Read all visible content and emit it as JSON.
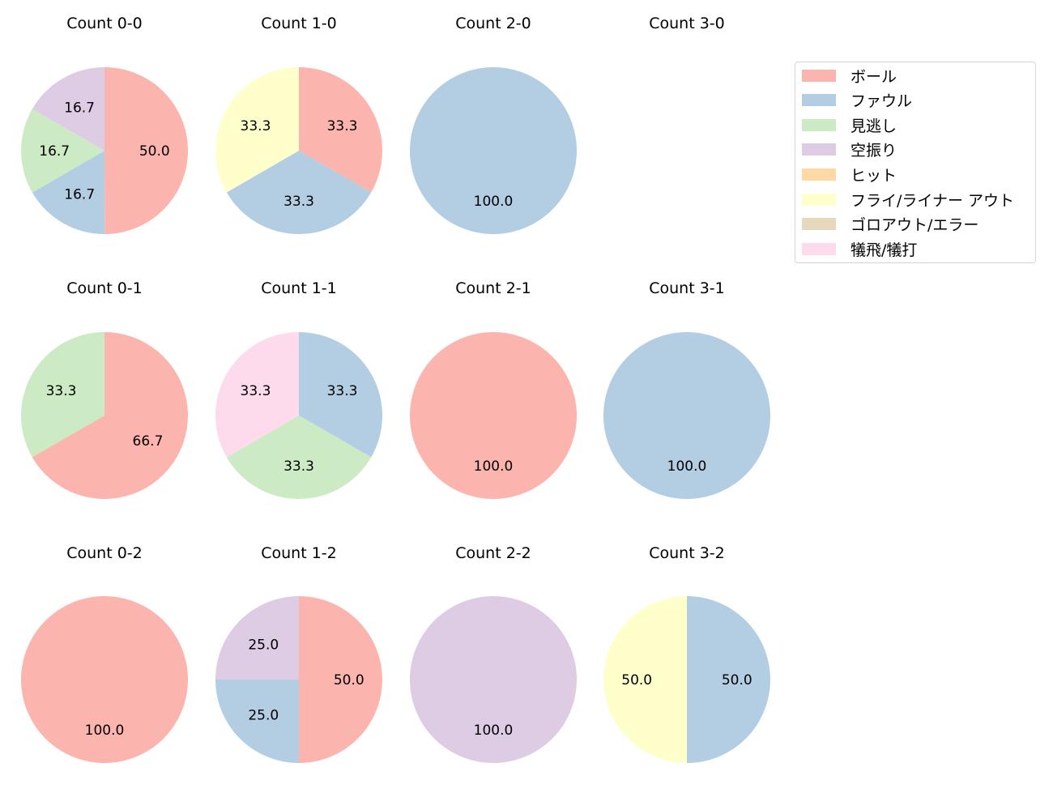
{
  "legend": {
    "items": [
      {
        "label": "ボール",
        "color": "#fbb4ae"
      },
      {
        "label": "ファウル",
        "color": "#b3cde3"
      },
      {
        "label": "見逃し",
        "color": "#ccebc5"
      },
      {
        "label": "空振り",
        "color": "#decbe4"
      },
      {
        "label": "ヒット",
        "color": "#fed9a6"
      },
      {
        "label": "フライ/ライナー アウト",
        "color": "#ffffcc"
      },
      {
        "label": "ゴロアウト/エラー",
        "color": "#e5d8bd"
      },
      {
        "label": "犠飛/犠打",
        "color": "#fddaec"
      }
    ]
  },
  "chart_data": {
    "type": "pie",
    "start_angle_deg": 90,
    "direction": "clockwise",
    "label_format": "%.1f",
    "categories": [
      "ボール",
      "ファウル",
      "見逃し",
      "空振り",
      "ヒット",
      "フライ/ライナー アウト",
      "ゴロアウト/エラー",
      "犠飛/犠打"
    ],
    "colors": [
      "#fbb4ae",
      "#b3cde3",
      "#ccebc5",
      "#decbe4",
      "#fed9a6",
      "#ffffcc",
      "#e5d8bd",
      "#fddaec"
    ],
    "legend_position": "upper right",
    "charts": [
      {
        "title": "Count 0-0",
        "row": 0,
        "col": 0,
        "slices": [
          {
            "category": "ボール",
            "value": 50.0
          },
          {
            "category": "ファウル",
            "value": 16.7
          },
          {
            "category": "見逃し",
            "value": 16.7
          },
          {
            "category": "空振り",
            "value": 16.7
          }
        ]
      },
      {
        "title": "Count 1-0",
        "row": 0,
        "col": 1,
        "slices": [
          {
            "category": "ボール",
            "value": 33.3
          },
          {
            "category": "ファウル",
            "value": 33.3
          },
          {
            "category": "フライ/ライナー アウト",
            "value": 33.3
          }
        ]
      },
      {
        "title": "Count 2-0",
        "row": 0,
        "col": 2,
        "slices": [
          {
            "category": "ファウル",
            "value": 100.0
          }
        ]
      },
      {
        "title": "Count 3-0",
        "row": 0,
        "col": 3,
        "slices": []
      },
      {
        "title": "Count 0-1",
        "row": 1,
        "col": 0,
        "slices": [
          {
            "category": "ボール",
            "value": 66.7
          },
          {
            "category": "見逃し",
            "value": 33.3
          }
        ]
      },
      {
        "title": "Count 1-1",
        "row": 1,
        "col": 1,
        "slices": [
          {
            "category": "ファウル",
            "value": 33.3
          },
          {
            "category": "見逃し",
            "value": 33.3
          },
          {
            "category": "犠飛/犠打",
            "value": 33.3
          }
        ]
      },
      {
        "title": "Count 2-1",
        "row": 1,
        "col": 2,
        "slices": [
          {
            "category": "ボール",
            "value": 100.0
          }
        ]
      },
      {
        "title": "Count 3-1",
        "row": 1,
        "col": 3,
        "slices": [
          {
            "category": "ファウル",
            "value": 100.0
          }
        ]
      },
      {
        "title": "Count 0-2",
        "row": 2,
        "col": 0,
        "slices": [
          {
            "category": "ボール",
            "value": 100.0
          }
        ]
      },
      {
        "title": "Count 1-2",
        "row": 2,
        "col": 1,
        "slices": [
          {
            "category": "ボール",
            "value": 50.0
          },
          {
            "category": "ファウル",
            "value": 25.0
          },
          {
            "category": "空振り",
            "value": 25.0
          }
        ]
      },
      {
        "title": "Count 2-2",
        "row": 2,
        "col": 2,
        "slices": [
          {
            "category": "空振り",
            "value": 100.0
          }
        ]
      },
      {
        "title": "Count 3-2",
        "row": 2,
        "col": 3,
        "slices": [
          {
            "category": "ファウル",
            "value": 50.0
          },
          {
            "category": "フライ/ライナー アウト",
            "value": 50.0
          }
        ]
      }
    ]
  }
}
